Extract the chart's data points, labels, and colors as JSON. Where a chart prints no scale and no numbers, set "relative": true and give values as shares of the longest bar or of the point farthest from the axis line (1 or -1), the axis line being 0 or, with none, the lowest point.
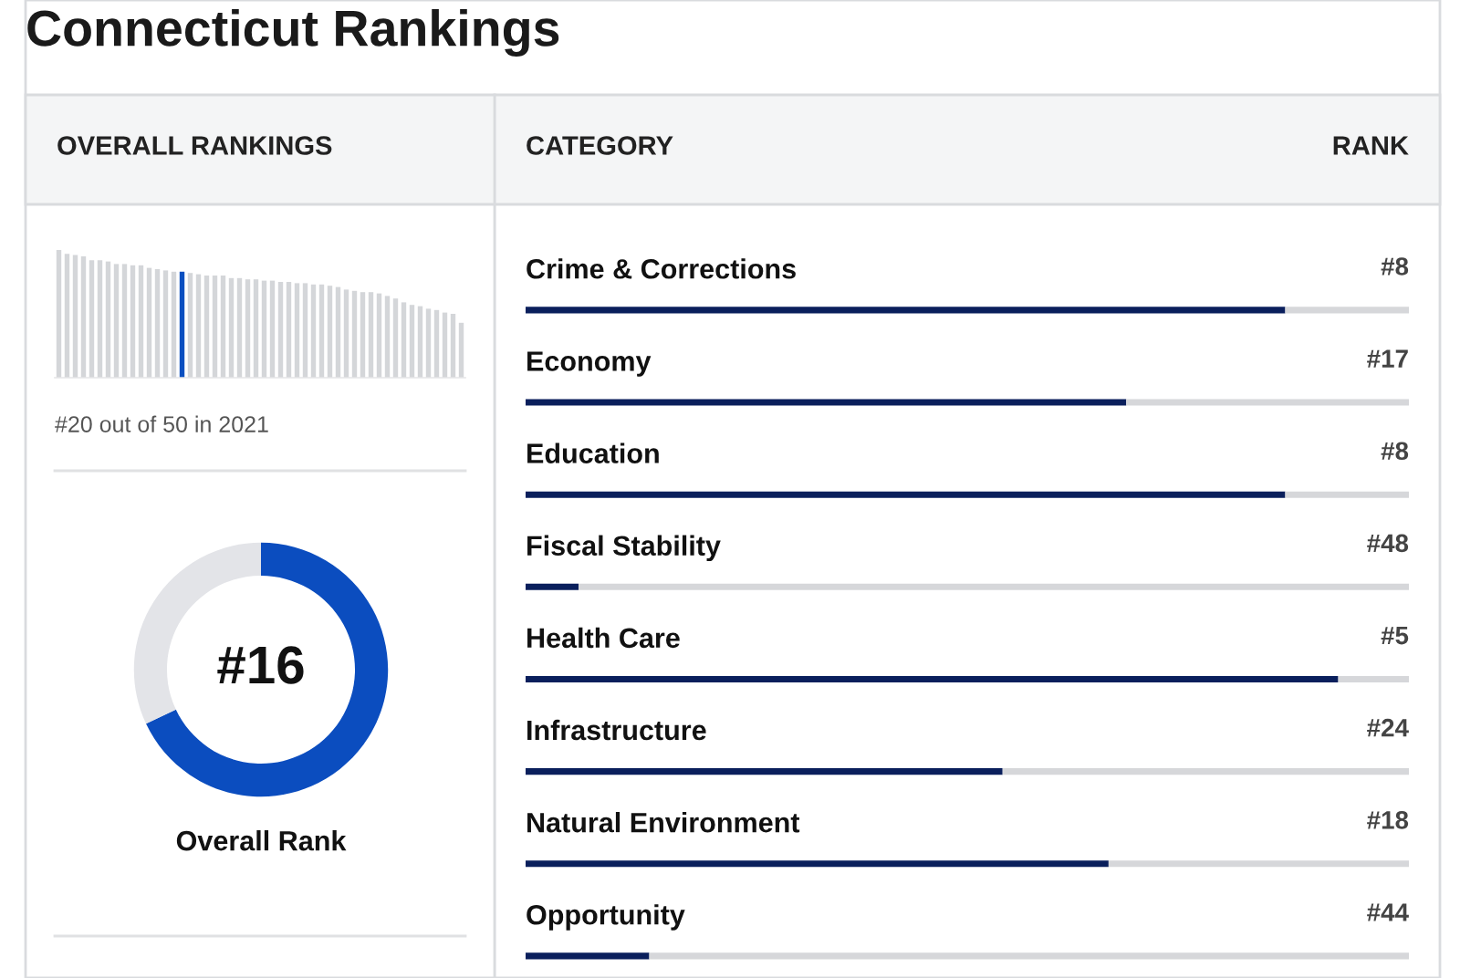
{
  "chart_data": [
    {
      "type": "bar",
      "title": "Connecticut Rankings",
      "subtitle": "OVERALL RANKINGS",
      "relative": true,
      "categories": [
        null,
        null,
        null,
        null,
        null,
        null,
        null,
        null,
        null,
        null,
        null,
        null,
        null,
        null,
        null,
        null,
        null,
        null,
        null,
        null,
        null,
        null,
        null,
        null,
        null,
        null,
        null,
        null,
        null,
        null,
        null,
        null,
        null,
        null,
        null,
        null,
        null,
        null,
        null,
        null,
        null,
        null,
        null,
        null,
        null,
        null,
        null,
        null,
        null,
        null
      ],
      "values": [
        1.0,
        0.97,
        0.96,
        0.95,
        0.92,
        0.92,
        0.91,
        0.89,
        0.89,
        0.88,
        0.88,
        0.86,
        0.85,
        0.84,
        0.83,
        0.83,
        0.82,
        0.81,
        0.8,
        0.8,
        0.8,
        0.78,
        0.78,
        0.77,
        0.77,
        0.76,
        0.76,
        0.75,
        0.75,
        0.74,
        0.74,
        0.73,
        0.73,
        0.72,
        0.71,
        0.69,
        0.68,
        0.67,
        0.67,
        0.66,
        0.64,
        0.62,
        0.59,
        0.57,
        0.56,
        0.54,
        0.53,
        0.51,
        0.5,
        0.43
      ],
      "colors": [
        "#d4d6d9",
        "#d4d6d9",
        "#d4d6d9",
        "#d4d6d9",
        "#d4d6d9",
        "#d4d6d9",
        "#d4d6d9",
        "#d4d6d9",
        "#d4d6d9",
        "#d4d6d9",
        "#d4d6d9",
        "#d4d6d9",
        "#d4d6d9",
        "#d4d6d9",
        "#d4d6d9",
        "#0a4fc0",
        "#d4d6d9",
        "#d4d6d9",
        "#d4d6d9",
        "#d4d6d9",
        "#d4d6d9",
        "#d4d6d9",
        "#d4d6d9",
        "#d4d6d9",
        "#d4d6d9",
        "#d4d6d9",
        "#d4d6d9",
        "#d4d6d9",
        "#d4d6d9",
        "#d4d6d9",
        "#d4d6d9",
        "#d4d6d9",
        "#d4d6d9",
        "#d4d6d9",
        "#d4d6d9",
        "#d4d6d9",
        "#d4d6d9",
        "#d4d6d9",
        "#d4d6d9",
        "#d4d6d9",
        "#d4d6d9",
        "#d4d6d9",
        "#d4d6d9",
        "#d4d6d9",
        "#d4d6d9",
        "#d4d6d9",
        "#d4d6d9",
        "#d4d6d9",
        "#d4d6d9",
        "#d4d6d9"
      ],
      "annotations": [
        "#20 out of 50 in 2021"
      ]
    },
    {
      "type": "donut",
      "categories": [
        null,
        null
      ],
      "values": [
        68,
        32
      ],
      "colors": [
        "#0b4dbf",
        "#e3e4e8"
      ],
      "annotations": [
        "#16"
      ],
      "xlabel": "Overall Rank"
    },
    {
      "type": "bar",
      "orientation": "horizontal",
      "stacked": true,
      "relative": true,
      "categories": [
        "Crime & Corrections",
        "Economy",
        "Education",
        "Fiscal Stability",
        "Health Care",
        "Infrastructure",
        "Natural Environment",
        "Opportunity"
      ],
      "series": [
        {
          "color": "#0a1f5c",
          "values": [
            0.86,
            0.68,
            0.86,
            0.06,
            0.92,
            0.54,
            0.66,
            0.14
          ]
        },
        {
          "color": "#d6d7da",
          "values": [
            0.14,
            0.32,
            0.14,
            0.94,
            0.08,
            0.46,
            0.34,
            0.86
          ]
        }
      ],
      "annotations": [
        "CATEGORY",
        "RANK",
        "#8",
        "#17",
        "#8",
        "#48",
        "#5",
        "#24",
        "#18",
        "#44"
      ]
    }
  ]
}
